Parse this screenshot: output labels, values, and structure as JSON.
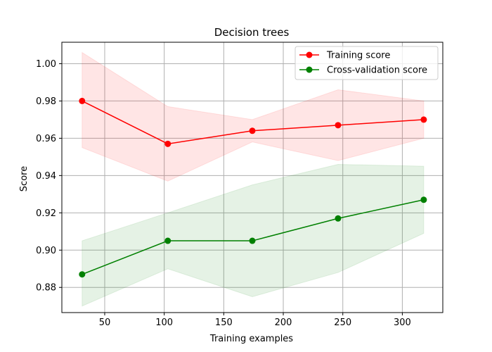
{
  "chart_data": {
    "type": "line",
    "title": "Decision trees",
    "xlabel": "Training examples",
    "ylabel": "Score",
    "xlim": [
      14,
      334
    ],
    "ylim": [
      0.8665,
      1.0115
    ],
    "xticks": [
      50,
      100,
      150,
      200,
      250,
      300
    ],
    "yticks": [
      0.88,
      0.9,
      0.92,
      0.94,
      0.96,
      0.98,
      1.0
    ],
    "ytick_decimals": 2,
    "grid": true,
    "legend_position": "top-right",
    "x": [
      31,
      103,
      174,
      246,
      318
    ],
    "series": [
      {
        "name": "Training score",
        "color": "#ff0000",
        "band_color": "#ff0000",
        "values": [
          0.98,
          0.957,
          0.964,
          0.967,
          0.97
        ],
        "lower": [
          0.955,
          0.937,
          0.958,
          0.948,
          0.96
        ],
        "upper": [
          1.006,
          0.977,
          0.97,
          0.986,
          0.98
        ]
      },
      {
        "name": "Cross-validation score",
        "color": "#008000",
        "band_color": "#008000",
        "values": [
          0.887,
          0.905,
          0.905,
          0.917,
          0.927
        ],
        "lower": [
          0.87,
          0.89,
          0.875,
          0.888,
          0.909
        ],
        "upper": [
          0.905,
          0.92,
          0.935,
          0.946,
          0.945
        ]
      }
    ]
  }
}
